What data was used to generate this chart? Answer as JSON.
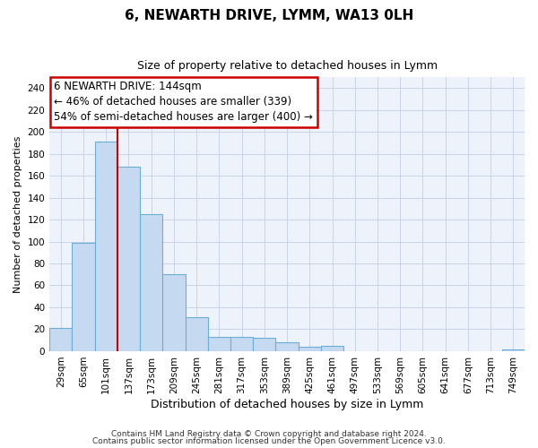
{
  "title": "6, NEWARTH DRIVE, LYMM, WA13 0LH",
  "subtitle": "Size of property relative to detached houses in Lymm",
  "xlabel": "Distribution of detached houses by size in Lymm",
  "ylabel": "Number of detached properties",
  "categories": [
    "29sqm",
    "65sqm",
    "101sqm",
    "137sqm",
    "173sqm",
    "209sqm",
    "245sqm",
    "281sqm",
    "317sqm",
    "353sqm",
    "389sqm",
    "425sqm",
    "461sqm",
    "497sqm",
    "533sqm",
    "569sqm",
    "605sqm",
    "641sqm",
    "677sqm",
    "713sqm",
    "749sqm"
  ],
  "values": [
    21,
    99,
    191,
    168,
    125,
    70,
    31,
    13,
    13,
    12,
    8,
    4,
    5,
    0,
    0,
    0,
    0,
    0,
    0,
    0,
    2
  ],
  "bar_color": "#c5d9f0",
  "bar_edge_color": "#6baed6",
  "bg_color": "#eef2fa",
  "grid_color": "#c8d4e8",
  "annotation_box_color": "#ffffff",
  "annotation_border_color": "#cc0000",
  "vline_color": "#cc0000",
  "vline_x_index": 3,
  "annotation_lines": [
    "6 NEWARTH DRIVE: 144sqm",
    "← 46% of detached houses are smaller (339)",
    "54% of semi-detached houses are larger (400) →"
  ],
  "footer_line1": "Contains HM Land Registry data © Crown copyright and database right 2024.",
  "footer_line2": "Contains public sector information licensed under the Open Government Licence v3.0.",
  "ylim": [
    0,
    250
  ],
  "yticks": [
    0,
    20,
    40,
    60,
    80,
    100,
    120,
    140,
    160,
    180,
    200,
    220,
    240
  ],
  "title_fontsize": 11,
  "subtitle_fontsize": 9,
  "ylabel_fontsize": 8,
  "xlabel_fontsize": 9,
  "tick_fontsize": 7.5,
  "annotation_fontsize": 8.5,
  "footer_fontsize": 6.5
}
